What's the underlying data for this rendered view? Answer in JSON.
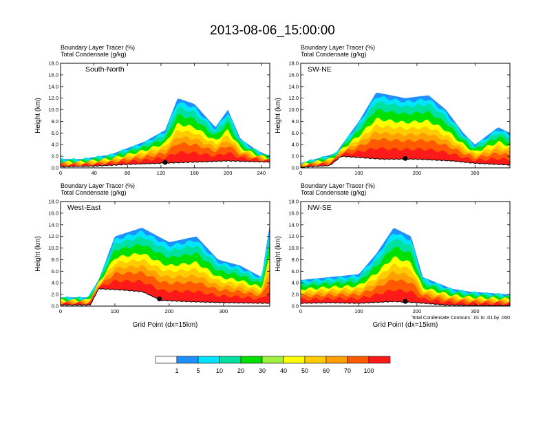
{
  "title": "2013-08-06_15:00:00",
  "field_label": "Boundary Layer Tracer   (%)",
  "contour_label": "Total Condensate   (g/kg)",
  "ylabel": "Height (km)",
  "xlabel": "Grid Point (dx=15km)",
  "contour_note": "Total Condensate Contours: .01 to .01 by .000",
  "colorbar": {
    "colors": [
      "#ffffff",
      "#1e90ff",
      "#00e5ff",
      "#00e0a0",
      "#00e000",
      "#a0f040",
      "#ffff00",
      "#ffcc00",
      "#ffa000",
      "#ff5a00",
      "#ff1a1a"
    ],
    "tick_labels": [
      "1",
      "5",
      "10",
      "20",
      "30",
      "40",
      "50",
      "60",
      "70",
      "100"
    ]
  },
  "chart_data": [
    {
      "type": "heatmap",
      "panel": "South-North",
      "x_ticks": [
        "0",
        "40",
        "80",
        "120",
        "160",
        "200",
        "240"
      ],
      "xlim": [
        0,
        250
      ],
      "y_ticks": [
        "0.0",
        "2.0",
        "4.0",
        "6.0",
        "8.0",
        "10.0",
        "12.0",
        "14.0",
        "16.0",
        "18.0"
      ],
      "ylim": [
        0,
        18
      ],
      "marker_x": 125,
      "terrain_km": [
        [
          0,
          0.2
        ],
        [
          40,
          0.3
        ],
        [
          80,
          0.6
        ],
        [
          120,
          0.8
        ],
        [
          160,
          1.0
        ],
        [
          200,
          1.2
        ],
        [
          250,
          1.0
        ]
      ],
      "plume_top_km": [
        [
          0,
          1.5
        ],
        [
          25,
          1.5
        ],
        [
          60,
          2.3
        ],
        [
          100,
          4.5
        ],
        [
          125,
          6.5
        ],
        [
          140,
          12
        ],
        [
          160,
          11
        ],
        [
          185,
          7
        ],
        [
          200,
          10
        ],
        [
          215,
          5
        ],
        [
          235,
          3
        ],
        [
          250,
          2
        ]
      ]
    },
    {
      "type": "heatmap",
      "panel": "SW-NE",
      "x_ticks": [
        "0",
        "100",
        "200",
        "300"
      ],
      "xlim": [
        0,
        360
      ],
      "y_ticks": [
        "0.0",
        "2.0",
        "4.0",
        "6.0",
        "8.0",
        "10.0",
        "12.0",
        "14.0",
        "16.0",
        "18.0"
      ],
      "ylim": [
        0,
        18
      ],
      "marker_x": 180,
      "terrain_km": [
        [
          0,
          0.1
        ],
        [
          50,
          0.4
        ],
        [
          70,
          2.0
        ],
        [
          140,
          1.5
        ],
        [
          200,
          1.5
        ],
        [
          260,
          1.2
        ],
        [
          300,
          0.8
        ],
        [
          360,
          0.5
        ]
      ],
      "plume_top_km": [
        [
          0,
          0.8
        ],
        [
          60,
          2.5
        ],
        [
          100,
          8
        ],
        [
          130,
          13
        ],
        [
          180,
          12
        ],
        [
          220,
          12.5
        ],
        [
          250,
          10
        ],
        [
          280,
          6
        ],
        [
          300,
          4
        ],
        [
          340,
          7
        ],
        [
          360,
          6
        ]
      ]
    },
    {
      "type": "heatmap",
      "panel": "West-East",
      "x_ticks": [
        "0",
        "100",
        "200",
        "300"
      ],
      "xlim": [
        0,
        385
      ],
      "y_ticks": [
        "0.0",
        "2.0",
        "4.0",
        "6.0",
        "8.0",
        "10.0",
        "12.0",
        "14.0",
        "16.0",
        "18.0"
      ],
      "ylim": [
        0,
        18
      ],
      "marker_x": 182,
      "terrain_km": [
        [
          0,
          0.2
        ],
        [
          55,
          0.2
        ],
        [
          70,
          3.0
        ],
        [
          110,
          2.8
        ],
        [
          150,
          2.5
        ],
        [
          185,
          1.0
        ],
        [
          230,
          0.8
        ],
        [
          300,
          0.6
        ],
        [
          385,
          0.5
        ]
      ],
      "plume_top_km": [
        [
          0,
          1.5
        ],
        [
          50,
          1.5
        ],
        [
          70,
          4.5
        ],
        [
          100,
          12
        ],
        [
          150,
          13.5
        ],
        [
          200,
          11
        ],
        [
          250,
          12
        ],
        [
          290,
          8
        ],
        [
          330,
          7
        ],
        [
          370,
          5
        ],
        [
          385,
          14
        ]
      ]
    },
    {
      "type": "heatmap",
      "panel": "NW-SE",
      "x_ticks": [
        "0",
        "100",
        "200",
        "300"
      ],
      "xlim": [
        0,
        360
      ],
      "y_ticks": [
        "0.0",
        "2.0",
        "4.0",
        "6.0",
        "8.0",
        "10.0",
        "12.0",
        "14.0",
        "16.0",
        "18.0"
      ],
      "ylim": [
        0,
        18
      ],
      "marker_x": 180,
      "terrain_km": [
        [
          0,
          0.5
        ],
        [
          50,
          0.6
        ],
        [
          100,
          0.5
        ],
        [
          160,
          0.8
        ],
        [
          200,
          0.6
        ],
        [
          250,
          0.2
        ],
        [
          300,
          0.1
        ],
        [
          360,
          0.1
        ]
      ],
      "plume_top_km": [
        [
          0,
          4.5
        ],
        [
          50,
          5
        ],
        [
          100,
          5.5
        ],
        [
          130,
          9
        ],
        [
          160,
          13.5
        ],
        [
          190,
          12
        ],
        [
          210,
          5
        ],
        [
          260,
          3
        ],
        [
          290,
          2.5
        ],
        [
          360,
          2
        ]
      ]
    }
  ]
}
